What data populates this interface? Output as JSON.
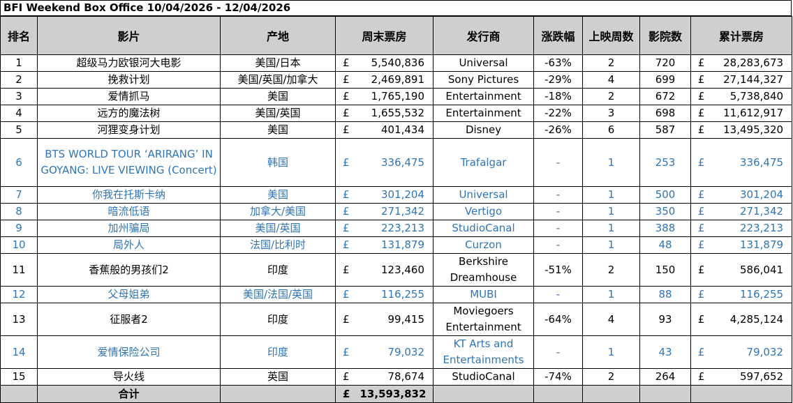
{
  "title": "BFI Weekend Box Office 10/04/2026 - 12/04/2026",
  "headers": {
    "rank": "排名",
    "film": "影片",
    "origin": "产地",
    "weekend": "周末票房",
    "distributor": "发行商",
    "change": "涨跌幅",
    "weeks": "上映周数",
    "cinemas": "影院数",
    "total": "累计票房"
  },
  "currency": "£",
  "rows": [
    {
      "rank": "1",
      "film": "超级马力欧银河大电影",
      "origin": "美国/日本",
      "weekend": "5,540,836",
      "distributor": "Universal",
      "change": "-63%",
      "weeks": "2",
      "cinemas": "720",
      "total": "28,283,673",
      "new": false
    },
    {
      "rank": "2",
      "film": "挽救计划",
      "origin": "美国/英国/加拿大",
      "weekend": "2,469,891",
      "distributor": "Sony Pictures",
      "change": "-29%",
      "weeks": "4",
      "cinemas": "699",
      "total": "27,144,327",
      "new": false
    },
    {
      "rank": "3",
      "film": "爱情抓马",
      "origin": "美国",
      "weekend": "1,765,190",
      "distributor": "Entertainment",
      "change": "-18%",
      "weeks": "2",
      "cinemas": "672",
      "total": "5,738,840",
      "new": false
    },
    {
      "rank": "4",
      "film": "远方的魔法树",
      "origin": "美国/英国",
      "weekend": "1,655,532",
      "distributor": "Entertainment",
      "change": "-22%",
      "weeks": "3",
      "cinemas": "698",
      "total": "11,612,917",
      "new": false
    },
    {
      "rank": "5",
      "film": "河狸变身计划",
      "origin": "美国",
      "weekend": "401,434",
      "distributor": "Disney",
      "change": "-26%",
      "weeks": "6",
      "cinemas": "587",
      "total": "13,495,320",
      "new": false
    },
    {
      "rank": "6",
      "film": "BTS WORLD TOUR ‘ARIRANG’ IN GOYANG: LIVE VIEWING (Concert)",
      "origin": "韩国",
      "weekend": "336,475",
      "distributor": "Trafalgar",
      "change": "-",
      "weeks": "1",
      "cinemas": "253",
      "total": "336,475",
      "new": true
    },
    {
      "rank": "7",
      "film": "你我在托斯卡纳",
      "origin": "美国",
      "weekend": "301,204",
      "distributor": "Universal",
      "change": "-",
      "weeks": "1",
      "cinemas": "500",
      "total": "301,204",
      "new": true
    },
    {
      "rank": "8",
      "film": "暗流低语",
      "origin": "加拿大/美国",
      "weekend": "271,342",
      "distributor": "Vertigo",
      "change": "-",
      "weeks": "1",
      "cinemas": "350",
      "total": "271,342",
      "new": true
    },
    {
      "rank": "9",
      "film": "加州骗局",
      "origin": "美国/英国",
      "weekend": "223,213",
      "distributor": "StudioCanal",
      "change": "-",
      "weeks": "1",
      "cinemas": "388",
      "total": "223,213",
      "new": true
    },
    {
      "rank": "10",
      "film": "局外人",
      "origin": "法国/比利时",
      "weekend": "131,879",
      "distributor": "Curzon",
      "change": "-",
      "weeks": "1",
      "cinemas": "48",
      "total": "131,879",
      "new": true
    },
    {
      "rank": "11",
      "film": "香蕉般的男孩们2",
      "origin": "印度",
      "weekend": "123,460",
      "distributor": "Berkshire Dreamhouse",
      "change": "-51%",
      "weeks": "2",
      "cinemas": "150",
      "total": "586,041",
      "new": false
    },
    {
      "rank": "12",
      "film": "父母姐弟",
      "origin": "美国/法国/英国",
      "weekend": "116,255",
      "distributor": "MUBI",
      "change": "-",
      "weeks": "1",
      "cinemas": "88",
      "total": "116,255",
      "new": true
    },
    {
      "rank": "13",
      "film": "征服者2",
      "origin": "印度",
      "weekend": "99,415",
      "distributor": "Moviegoers Entertainment",
      "change": "-64%",
      "weeks": "4",
      "cinemas": "93",
      "total": "4,285,124",
      "new": false
    },
    {
      "rank": "14",
      "film": "爱情保险公司",
      "origin": "印度",
      "weekend": "79,032",
      "distributor": "KT Arts and Entertainments",
      "change": "-",
      "weeks": "1",
      "cinemas": "43",
      "total": "79,032",
      "new": true
    },
    {
      "rank": "15",
      "film": "导火线",
      "origin": "英国",
      "weekend": "78,674",
      "distributor": "StudioCanal",
      "change": "-74%",
      "weeks": "2",
      "cinemas": "264",
      "total": "597,652",
      "new": false
    }
  ],
  "footer": {
    "label": "合计",
    "total": "13,593,832"
  }
}
